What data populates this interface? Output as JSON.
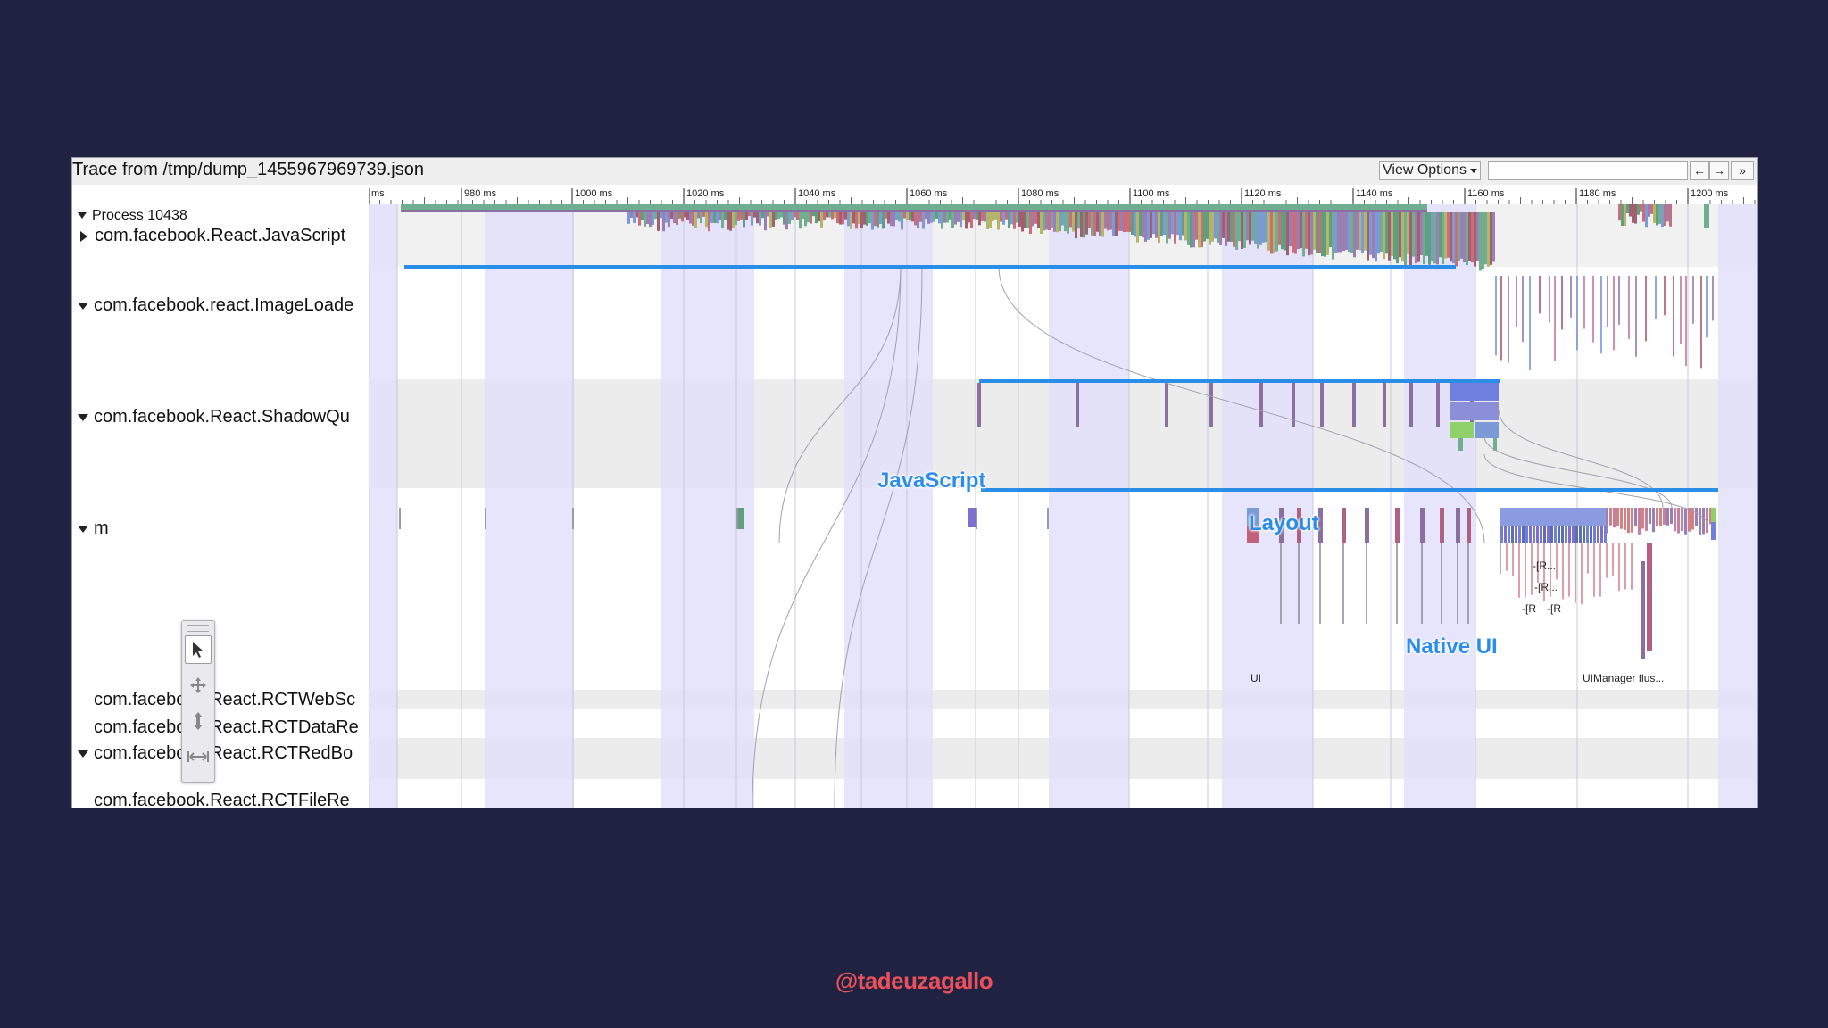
{
  "window": {
    "title": "Trace from /tmp/dump_1455967969739.json",
    "view_options_label": "View Options",
    "search_placeholder": "",
    "nav_prev": "←",
    "nav_next": "→",
    "nav_more": "»"
  },
  "ruler": {
    "tick_labels": [
      "ms",
      "980 ms",
      "1000 ms",
      "1020 ms",
      "1040 ms",
      "1060 ms",
      "1080 ms",
      "1100 ms",
      "1120 ms",
      "1140 ms",
      "1160 ms",
      "1180 ms",
      "1200 ms"
    ]
  },
  "process": {
    "label": "Process 10438"
  },
  "tracks": [
    {
      "label": "com.facebook.React.JavaScript",
      "expanded": false
    },
    {
      "label": "com.facebook.react.ImageLoade",
      "expanded": true
    },
    {
      "label": "com.facebook.React.ShadowQu",
      "expanded": true
    },
    {
      "label": "m",
      "expanded": true
    },
    {
      "label": "com.facebook.React.RCTWebSc",
      "expanded": false
    },
    {
      "label": "com.facebook.React.RCTDataRe",
      "expanded": false
    },
    {
      "label": "com.facebook.React.RCTRedBo",
      "expanded": true
    },
    {
      "label": "com.facebook.React.RCTFileRe",
      "expanded": false
    }
  ],
  "annotations": {
    "javascript": "JavaScript",
    "layout": "Layout",
    "native_ui": "Native UI"
  },
  "slices": {
    "shadow_r1": "-[R...",
    "shadow_r2": "-[R...",
    "shadow_r3": "-[R",
    "shadow_r4": "-[R",
    "main_ui": "UI",
    "main_uimanager": "UIManager flus..."
  },
  "toolbar": {
    "tools": [
      "selection-tool",
      "pan-tool",
      "zoom-tool",
      "timing-tool"
    ]
  },
  "colors": {
    "background": "#1f2240",
    "annotation": "#2a8ee8",
    "highlight_band": "#e3e1fb",
    "watermark": "#e8505b"
  },
  "watermark": "@tadeuzagallo"
}
